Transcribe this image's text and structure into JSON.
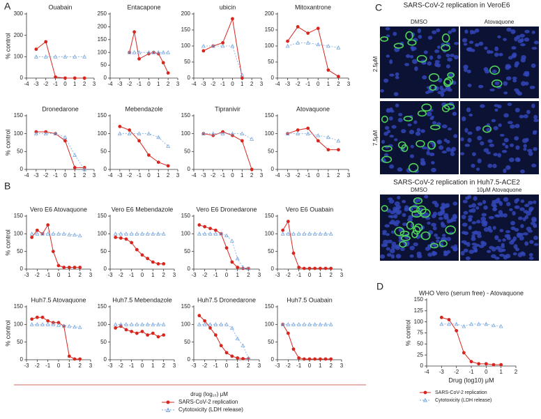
{
  "panels": {
    "a": "A",
    "b": "B",
    "c": "C",
    "d": "D",
    "c_title": "SARS-CoV-2 replication in VeroE6",
    "c_col1": "DMSO",
    "c_col2": "Atovaquone",
    "c_row1": "2.5μM",
    "c_row2": "7.5μM",
    "c_title2": "SARS-CoV-2 replication in Huh7.5-ACE2",
    "c2_col1": "DMSO",
    "c2_col2": "10μM Atovaquone"
  },
  "legend": {
    "xlabel": "drug (log₁₀) μM",
    "items": [
      "SARS-CoV-2 replication",
      "Cytotoxicity (LDH release)"
    ]
  },
  "chart_data": [
    {
      "type": "line",
      "title": "Ouabain",
      "ylabel": "% control",
      "xlim": [
        -4,
        3
      ],
      "xticks": [
        -4,
        -3,
        -2,
        -1,
        0,
        1,
        2,
        3
      ],
      "ylim": [
        0,
        300
      ],
      "yticks": [
        0,
        100,
        200,
        300
      ],
      "x": [
        -3,
        -2,
        -1,
        0,
        1,
        2
      ],
      "series": [
        {
          "color": "#d7261e",
          "values": [
            135,
            170,
            5,
            0,
            0,
            0
          ]
        },
        {
          "color": "#7aa8e0",
          "values": [
            100,
            100,
            100,
            100,
            100,
            100
          ]
        }
      ]
    },
    {
      "type": "line",
      "title": "Entacapone",
      "xlim": [
        -4,
        3
      ],
      "xticks": [
        -4,
        -3,
        -2,
        -1,
        0,
        1,
        2,
        3
      ],
      "ylim": [
        0,
        250
      ],
      "yticks": [
        0,
        50,
        100,
        150,
        200,
        250
      ],
      "x": [
        -2,
        -1.5,
        -1,
        0,
        0.5,
        1,
        1.5,
        2
      ],
      "series": [
        {
          "color": "#d7261e",
          "values": [
            100,
            180,
            75,
            95,
            100,
            95,
            60,
            20
          ]
        },
        {
          "color": "#7aa8e0",
          "values": [
            100,
            100,
            100,
            100,
            100,
            100,
            100,
            100
          ]
        }
      ]
    },
    {
      "type": "line",
      "title": "ubicin",
      "xlim": [
        -4,
        3
      ],
      "xticks": [
        -4,
        -3,
        -2,
        -1,
        0,
        1,
        2,
        3
      ],
      "ylim": [
        0,
        200
      ],
      "yticks": [
        0,
        50,
        100,
        150,
        200
      ],
      "x": [
        -3,
        -2,
        -1,
        0,
        1
      ],
      "series": [
        {
          "color": "#d7261e",
          "values": [
            85,
            100,
            110,
            185,
            0
          ]
        },
        {
          "color": "#7aa8e0",
          "values": [
            100,
            100,
            100,
            100,
            10
          ]
        }
      ]
    },
    {
      "type": "line",
      "title": "Mitoxantrone",
      "xlim": [
        -4,
        3
      ],
      "xticks": [
        -4,
        -3,
        -2,
        -1,
        0,
        1,
        2,
        3
      ],
      "ylim": [
        0,
        200
      ],
      "yticks": [
        0,
        50,
        100,
        150,
        200
      ],
      "x": [
        -3,
        -2,
        -1,
        0,
        1,
        2
      ],
      "series": [
        {
          "color": "#d7261e",
          "values": [
            115,
            160,
            140,
            155,
            25,
            5
          ]
        },
        {
          "color": "#7aa8e0",
          "values": [
            100,
            110,
            110,
            105,
            100,
            95
          ]
        }
      ]
    },
    {
      "type": "line",
      "title": "Dronedarone",
      "ylabel": "% control",
      "xlim": [
        -4,
        3
      ],
      "xticks": [
        -4,
        -3,
        -2,
        -1,
        0,
        1,
        2,
        3
      ],
      "ylim": [
        0,
        150
      ],
      "yticks": [
        0,
        50,
        100,
        150
      ],
      "x": [
        -3,
        -2,
        -1,
        0,
        1,
        2
      ],
      "series": [
        {
          "color": "#d7261e",
          "values": [
            105,
            105,
            100,
            80,
            5,
            5
          ]
        },
        {
          "color": "#7aa8e0",
          "values": [
            100,
            100,
            100,
            90,
            40,
            0
          ]
        }
      ]
    },
    {
      "type": "line",
      "title": "Mebendazole",
      "xlim": [
        -4,
        3
      ],
      "xticks": [
        -4,
        -3,
        -2,
        -1,
        0,
        1,
        2,
        3
      ],
      "ylim": [
        0,
        150
      ],
      "yticks": [
        0,
        50,
        100,
        150
      ],
      "x": [
        -3,
        -2,
        -1,
        0,
        1,
        2
      ],
      "series": [
        {
          "color": "#d7261e",
          "values": [
            120,
            110,
            80,
            40,
            20,
            10
          ]
        },
        {
          "color": "#7aa8e0",
          "values": [
            100,
            100,
            100,
            100,
            90,
            65
          ]
        }
      ]
    },
    {
      "type": "line",
      "title": "Tipranivir",
      "xlim": [
        -4,
        3
      ],
      "xticks": [
        -4,
        -3,
        -2,
        -1,
        0,
        1,
        2,
        3
      ],
      "ylim": [
        0,
        150
      ],
      "yticks": [
        0,
        50,
        100,
        150
      ],
      "x": [
        -3,
        -2,
        -1,
        0,
        1,
        2
      ],
      "series": [
        {
          "color": "#d7261e",
          "values": [
            100,
            95,
            105,
            95,
            80,
            0
          ]
        },
        {
          "color": "#7aa8e0",
          "values": [
            100,
            100,
            100,
            100,
            100,
            85
          ]
        }
      ]
    },
    {
      "type": "line",
      "title": "Atovaquone",
      "xlim": [
        -4,
        3
      ],
      "xticks": [
        -4,
        -3,
        -2,
        -1,
        0,
        1,
        2,
        3
      ],
      "ylim": [
        0,
        150
      ],
      "yticks": [
        0,
        50,
        100,
        150
      ],
      "x": [
        -3,
        -2,
        -1,
        0,
        1,
        2
      ],
      "series": [
        {
          "color": "#d7261e",
          "values": [
            100,
            110,
            115,
            80,
            55,
            55
          ]
        },
        {
          "color": "#7aa8e0",
          "values": [
            100,
            100,
            100,
            95,
            90,
            80
          ]
        }
      ]
    },
    {
      "type": "line",
      "title": "Vero E6 Atovaquone",
      "ylabel": "% control",
      "xlim": [
        -3,
        3
      ],
      "xticks": [
        -3,
        -2,
        -1,
        0,
        1,
        2,
        3
      ],
      "ylim": [
        0,
        150
      ],
      "yticks": [
        0,
        50,
        100,
        150
      ],
      "x": [
        -2.5,
        -2,
        -1.5,
        -1,
        -0.5,
        0,
        0.5,
        1,
        1.5,
        2
      ],
      "series": [
        {
          "color": "#d7261e",
          "values": [
            90,
            110,
            100,
            125,
            50,
            10,
            5,
            5,
            5,
            5
          ]
        },
        {
          "color": "#7aa8e0",
          "values": [
            100,
            100,
            100,
            100,
            100,
            100,
            100,
            98,
            97,
            95
          ]
        }
      ]
    },
    {
      "type": "line",
      "title": "Vero E6 Mebendazole",
      "xlim": [
        -3,
        3
      ],
      "xticks": [
        -3,
        -2,
        -1,
        0,
        1,
        2,
        3
      ],
      "ylim": [
        0,
        150
      ],
      "yticks": [
        0,
        50,
        100,
        150
      ],
      "x": [
        -2.5,
        -2,
        -1.5,
        -1,
        -0.5,
        0,
        0.5,
        1,
        1.5,
        2
      ],
      "series": [
        {
          "color": "#d7261e",
          "values": [
            90,
            88,
            85,
            75,
            55,
            40,
            30,
            20,
            15,
            15
          ]
        },
        {
          "color": "#7aa8e0",
          "values": [
            100,
            100,
            100,
            100,
            100,
            100,
            100,
            100,
            100,
            100
          ]
        }
      ]
    },
    {
      "type": "line",
      "title": "Vero E6 Dronedarone",
      "xlim": [
        -3,
        3
      ],
      "xticks": [
        -3,
        -2,
        -1,
        0,
        1,
        2,
        3
      ],
      "ylim": [
        0,
        150
      ],
      "yticks": [
        0,
        50,
        100,
        150
      ],
      "x": [
        -2.5,
        -2,
        -1.5,
        -1,
        -0.5,
        0,
        0.5,
        1,
        1.5,
        2
      ],
      "series": [
        {
          "color": "#d7261e",
          "values": [
            125,
            120,
            115,
            110,
            100,
            60,
            20,
            5,
            2,
            2
          ]
        },
        {
          "color": "#7aa8e0",
          "values": [
            100,
            100,
            100,
            100,
            100,
            95,
            80,
            30,
            5,
            2
          ]
        }
      ]
    },
    {
      "type": "line",
      "title": "Vero E6 Ouabain",
      "xlim": [
        -3,
        3
      ],
      "xticks": [
        -3,
        -2,
        -1,
        0,
        1,
        2,
        3
      ],
      "ylim": [
        0,
        150
      ],
      "yticks": [
        0,
        50,
        100,
        150
      ],
      "x": [
        -2.5,
        -2,
        -1.5,
        -1,
        -0.5,
        0,
        0.5,
        1,
        1.5,
        2
      ],
      "series": [
        {
          "color": "#d7261e",
          "values": [
            110,
            135,
            45,
            5,
            2,
            2,
            2,
            2,
            2,
            2
          ]
        },
        {
          "color": "#7aa8e0",
          "values": [
            100,
            100,
            100,
            100,
            100,
            100,
            100,
            100,
            100,
            100
          ]
        }
      ]
    },
    {
      "type": "line",
      "title": "Huh7.5 Atovaquone",
      "ylabel": "% control",
      "xlim": [
        -3,
        3
      ],
      "xticks": [
        -3,
        -2,
        -1,
        0,
        1,
        2,
        3
      ],
      "ylim": [
        0,
        150
      ],
      "yticks": [
        0,
        50,
        100,
        150
      ],
      "x": [
        -2.5,
        -2,
        -1.5,
        -1,
        -0.5,
        0,
        0.5,
        1,
        1.5,
        2
      ],
      "series": [
        {
          "color": "#d7261e",
          "values": [
            115,
            120,
            120,
            110,
            105,
            105,
            95,
            10,
            2,
            2
          ]
        },
        {
          "color": "#7aa8e0",
          "values": [
            100,
            100,
            100,
            100,
            100,
            98,
            96,
            95,
            93,
            92
          ]
        }
      ]
    },
    {
      "type": "line",
      "title": "Huh7.5 Mebendazole",
      "xlim": [
        -3,
        3
      ],
      "xticks": [
        -3,
        -2,
        -1,
        0,
        1,
        2,
        3
      ],
      "ylim": [
        0,
        150
      ],
      "yticks": [
        0,
        50,
        100,
        150
      ],
      "x": [
        -2.5,
        -2,
        -1.5,
        -1,
        -0.5,
        0,
        0.5,
        1,
        1.5,
        2
      ],
      "series": [
        {
          "color": "#d7261e",
          "values": [
            90,
            95,
            85,
            80,
            75,
            80,
            70,
            75,
            65,
            70
          ]
        },
        {
          "color": "#7aa8e0",
          "values": [
            100,
            100,
            100,
            100,
            100,
            100,
            100,
            100,
            100,
            100
          ]
        }
      ]
    },
    {
      "type": "line",
      "title": "Huh7.5 Dronedarone",
      "xlim": [
        -3,
        3
      ],
      "xticks": [
        -3,
        -2,
        -1,
        0,
        1,
        2,
        3
      ],
      "ylim": [
        0,
        150
      ],
      "yticks": [
        0,
        50,
        100,
        150
      ],
      "x": [
        -2.5,
        -2,
        -1.5,
        -1,
        -0.5,
        0,
        0.5,
        1,
        1.5,
        2
      ],
      "series": [
        {
          "color": "#d7261e",
          "values": [
            125,
            110,
            90,
            70,
            40,
            20,
            10,
            5,
            3,
            3
          ]
        },
        {
          "color": "#7aa8e0",
          "values": [
            100,
            100,
            100,
            100,
            100,
            100,
            90,
            60,
            40,
            5
          ]
        }
      ]
    },
    {
      "type": "line",
      "title": "Huh7.5 Ouabain",
      "xlim": [
        -3,
        3
      ],
      "xticks": [
        -3,
        -2,
        -1,
        0,
        1,
        2,
        3
      ],
      "ylim": [
        0,
        150
      ],
      "yticks": [
        0,
        50,
        100,
        150
      ],
      "x": [
        -2.5,
        -2,
        -1.5,
        -1,
        -0.5,
        0,
        0.5,
        1,
        1.5,
        2
      ],
      "series": [
        {
          "color": "#d7261e",
          "values": [
            100,
            75,
            30,
            5,
            2,
            2,
            2,
            2,
            2,
            2
          ]
        },
        {
          "color": "#7aa8e0",
          "values": [
            100,
            100,
            100,
            100,
            100,
            100,
            100,
            100,
            100,
            100
          ]
        }
      ]
    },
    {
      "type": "line",
      "title": "WHO Vero (serum free) - Atovaquone",
      "ylabel": "% control",
      "xlabel": "Drug (log10) μM",
      "xlim": [
        -4,
        2
      ],
      "xticks": [
        -4,
        -3,
        -2,
        -1,
        0,
        1,
        2
      ],
      "ylim": [
        0,
        150
      ],
      "yticks": [
        0,
        25,
        50,
        75,
        100,
        125,
        150
      ],
      "x": [
        -3,
        -2.5,
        -2,
        -1.5,
        -1,
        -0.5,
        0,
        0.5,
        1
      ],
      "series": [
        {
          "name": "SARS-CoV-2 replication",
          "color": "#d7261e",
          "values": [
            110,
            105,
            80,
            30,
            10,
            5,
            5,
            3,
            3
          ]
        },
        {
          "name": "Cytotoxicity (LDH release)",
          "color": "#7aa8e0",
          "values": [
            95,
            95,
            95,
            90,
            95,
            95,
            95,
            92,
            90
          ]
        }
      ]
    }
  ]
}
